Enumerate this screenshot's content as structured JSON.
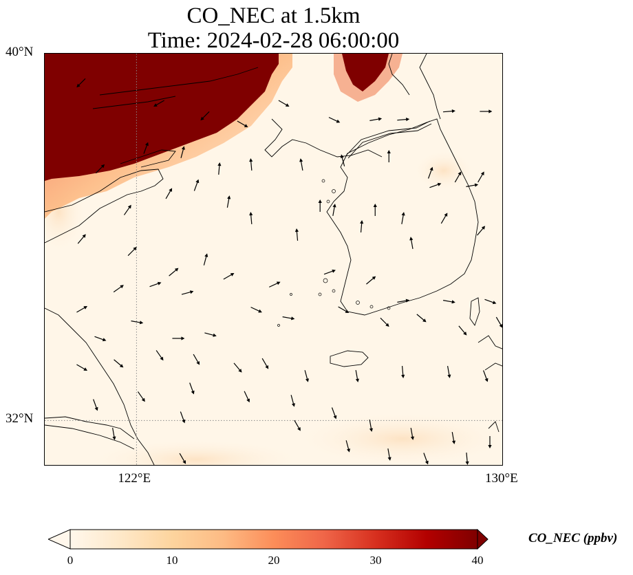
{
  "title_line1": "CO_NEC at 1.5km",
  "title_line2": "Time: 2024-02-28 06:00:00",
  "lat_ticks": [
    {
      "label": "40°N",
      "lat": 40
    },
    {
      "label": "32°N",
      "lat": 32
    }
  ],
  "lon_ticks": [
    {
      "label": "122°E",
      "lon": 122
    },
    {
      "label": "130°E",
      "lon": 130
    }
  ],
  "extent": {
    "lon_min": 120,
    "lon_max": 130,
    "lat_min": 31,
    "lat_max": 40
  },
  "gridlines": {
    "lons": [
      122
    ],
    "lats": [
      32
    ],
    "style": "dotted",
    "color": "#888888"
  },
  "colorbar": {
    "title": "CO_NEC (ppbv)",
    "min": 0,
    "max": 40,
    "extend": "both",
    "ticks": [
      {
        "label": "0",
        "value": 0
      },
      {
        "label": "10",
        "value": 10
      },
      {
        "label": "20",
        "value": 20
      },
      {
        "label": "30",
        "value": 30
      },
      {
        "label": "40",
        "value": 40
      }
    ],
    "colormap": [
      "#fff7ec",
      "#fee8c8",
      "#fdd49e",
      "#fdbb84",
      "#fc8d59",
      "#ef6548",
      "#d7301f",
      "#b30000",
      "#7f0000"
    ]
  },
  "field_colors": {
    "background": "#fff6e8",
    "high": "#7f0000"
  },
  "wind_vectors": [
    [
      0.08,
      0.93,
      135
    ],
    [
      0.25,
      0.88,
      150
    ],
    [
      0.35,
      0.85,
      135
    ],
    [
      0.43,
      0.83,
      30
    ],
    [
      0.52,
      0.88,
      30
    ],
    [
      0.63,
      0.84,
      25
    ],
    [
      0.72,
      0.84,
      -10
    ],
    [
      0.78,
      0.84,
      -5
    ],
    [
      0.88,
      0.86,
      -5
    ],
    [
      0.96,
      0.86,
      0
    ],
    [
      0.12,
      0.72,
      -45
    ],
    [
      0.22,
      0.77,
      -70
    ],
    [
      0.3,
      0.76,
      -75
    ],
    [
      0.38,
      0.72,
      -85
    ],
    [
      0.45,
      0.73,
      -95
    ],
    [
      0.56,
      0.73,
      -100
    ],
    [
      0.65,
      0.74,
      -105
    ],
    [
      0.75,
      0.75,
      -90
    ],
    [
      0.84,
      0.71,
      -70
    ],
    [
      0.9,
      0.7,
      -60
    ],
    [
      0.95,
      0.7,
      -60
    ],
    [
      0.18,
      0.62,
      -55
    ],
    [
      0.27,
      0.66,
      -60
    ],
    [
      0.33,
      0.68,
      -70
    ],
    [
      0.4,
      0.64,
      -80
    ],
    [
      0.55,
      0.56,
      -95
    ],
    [
      0.63,
      0.62,
      -80
    ],
    [
      0.72,
      0.62,
      -90
    ],
    [
      0.78,
      0.6,
      -80
    ],
    [
      0.85,
      0.68,
      -20
    ],
    [
      0.93,
      0.68,
      -10
    ],
    [
      0.08,
      0.55,
      -50
    ],
    [
      0.19,
      0.52,
      -45
    ],
    [
      0.28,
      0.47,
      -40
    ],
    [
      0.35,
      0.5,
      -75
    ],
    [
      0.45,
      0.6,
      -95
    ],
    [
      0.6,
      0.63,
      -90
    ],
    [
      0.69,
      0.58,
      -85
    ],
    [
      0.8,
      0.54,
      -100
    ],
    [
      0.87,
      0.6,
      -60
    ],
    [
      0.95,
      0.57,
      -50
    ],
    [
      0.08,
      0.38,
      -30
    ],
    [
      0.16,
      0.43,
      -35
    ],
    [
      0.24,
      0.44,
      -20
    ],
    [
      0.31,
      0.42,
      -15
    ],
    [
      0.4,
      0.46,
      -30
    ],
    [
      0.5,
      0.44,
      -25
    ],
    [
      0.62,
      0.47,
      -20
    ],
    [
      0.71,
      0.45,
      -40
    ],
    [
      0.78,
      0.4,
      -10
    ],
    [
      0.88,
      0.4,
      10
    ],
    [
      0.97,
      0.4,
      20
    ],
    [
      0.12,
      0.31,
      20
    ],
    [
      0.2,
      0.35,
      10
    ],
    [
      0.29,
      0.31,
      0
    ],
    [
      0.36,
      0.32,
      15
    ],
    [
      0.46,
      0.38,
      25
    ],
    [
      0.53,
      0.36,
      10
    ],
    [
      0.65,
      0.38,
      30
    ],
    [
      0.74,
      0.35,
      45
    ],
    [
      0.82,
      0.36,
      40
    ],
    [
      0.91,
      0.33,
      50
    ],
    [
      0.99,
      0.35,
      60
    ],
    [
      0.08,
      0.24,
      30
    ],
    [
      0.16,
      0.25,
      40
    ],
    [
      0.25,
      0.27,
      55
    ],
    [
      0.33,
      0.26,
      60
    ],
    [
      0.42,
      0.24,
      50
    ],
    [
      0.48,
      0.25,
      60
    ],
    [
      0.57,
      0.22,
      75
    ],
    [
      0.68,
      0.22,
      80
    ],
    [
      0.78,
      0.23,
      85
    ],
    [
      0.88,
      0.23,
      80
    ],
    [
      0.96,
      0.22,
      70
    ],
    [
      0.11,
      0.15,
      70
    ],
    [
      0.21,
      0.17,
      55
    ],
    [
      0.32,
      0.19,
      70
    ],
    [
      0.44,
      0.17,
      65
    ],
    [
      0.54,
      0.16,
      75
    ],
    [
      0.63,
      0.13,
      70
    ],
    [
      0.71,
      0.1,
      80
    ],
    [
      0.8,
      0.08,
      80
    ],
    [
      0.89,
      0.07,
      80
    ],
    [
      0.97,
      0.06,
      90
    ],
    [
      0.15,
      0.08,
      80
    ],
    [
      0.3,
      0.12,
      70
    ],
    [
      0.55,
      0.1,
      60
    ],
    [
      0.66,
      0.05,
      75
    ],
    [
      0.75,
      0.03,
      80
    ],
    [
      0.83,
      0.02,
      70
    ],
    [
      0.92,
      0.02,
      85
    ],
    [
      0.3,
      0.02,
      60
    ]
  ]
}
